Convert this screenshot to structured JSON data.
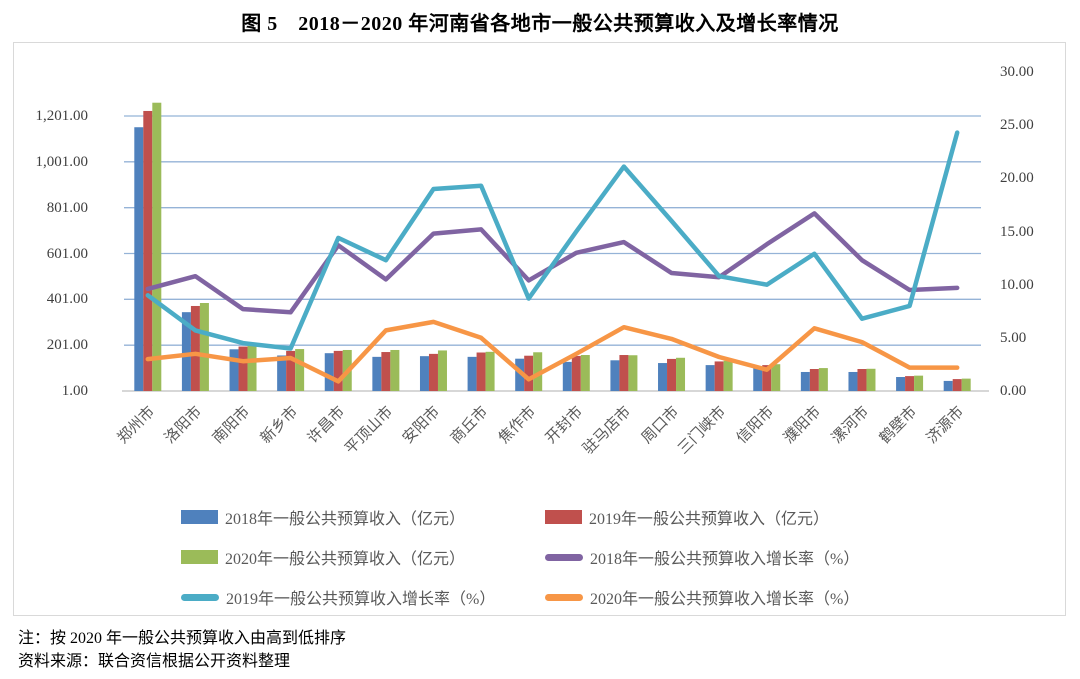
{
  "title": "图 5　2018－2020 年河南省各地市一般公共预算收入及增长率情况",
  "notes": [
    "注：按 2020 年一般公共预算收入由高到低排序",
    "资料来源：联合资信根据公开资料整理"
  ],
  "chart_data": {
    "type": "combo-bar-line",
    "title": "图 5　2018－2020 年河南省各地市一般公共预算收入及增长率情况",
    "legend_position": "bottom",
    "grid": true,
    "categories": [
      "郑州市",
      "洛阳市",
      "南阳市",
      "新乡市",
      "许昌市",
      "平顶山市",
      "安阳市",
      "商丘市",
      "焦作市",
      "开封市",
      "驻马店市",
      "周口市",
      "三门峡市",
      "信阳市",
      "濮阳市",
      "漯河市",
      "鹤壁市",
      "济源市"
    ],
    "bar_series": [
      {
        "name": "2018年一般公共预算收入（亿元）",
        "color": "#4F81BD",
        "axis": "left",
        "values": [
          1152,
          345,
          183,
          156,
          166,
          150,
          153,
          150,
          142,
          128,
          135,
          123,
          114,
          101,
          84,
          84,
          62,
          45
        ]
      },
      {
        "name": "2019年一般公共预算收入（亿元）",
        "color": "#C0504D",
        "axis": "left",
        "values": [
          1223,
          372,
          195,
          176,
          176,
          171,
          163,
          169,
          155,
          154,
          158,
          141,
          130,
          114,
          97,
          97,
          66,
          53
        ]
      },
      {
        "name": "2020年一般公共预算收入（亿元）",
        "color": "#9BBB59",
        "axis": "left",
        "values": [
          1259,
          385,
          201,
          184,
          180,
          180,
          178,
          172,
          170,
          158,
          157,
          146,
          133,
          118,
          101,
          98,
          68,
          55
        ]
      }
    ],
    "line_series": [
      {
        "name": "2018年一般公共预算收入增长率（%）",
        "color": "#8064A2",
        "axis": "right",
        "values": [
          9.6,
          10.8,
          7.7,
          7.4,
          13.7,
          10.5,
          14.8,
          15.2,
          10.4,
          13.0,
          14.0,
          11.1,
          10.7,
          13.8,
          16.7,
          12.3,
          9.5,
          9.7
        ]
      },
      {
        "name": "2019年一般公共预算收入增长率（%）",
        "color": "#4BACC6",
        "axis": "right",
        "values": [
          9.0,
          5.7,
          4.5,
          4.0,
          14.4,
          12.3,
          19.0,
          19.3,
          8.7,
          15.0,
          21.1,
          16.0,
          10.8,
          10.0,
          12.9,
          6.8,
          8.0,
          24.3
        ]
      },
      {
        "name": "2020年一般公共预算收入增长率（%）",
        "color": "#F79646",
        "axis": "right",
        "values": [
          3.0,
          3.5,
          2.8,
          3.1,
          0.9,
          5.7,
          6.5,
          5.0,
          1.1,
          3.5,
          6.0,
          4.9,
          3.2,
          2.0,
          5.9,
          4.6,
          2.2,
          2.2
        ]
      }
    ],
    "left_axis": {
      "min": 1,
      "max": 1201,
      "step": 200,
      "tick_labels": [
        "1.00",
        "201.00",
        "401.00",
        "601.00",
        "801.00",
        "1,001.00",
        "1,201.00"
      ]
    },
    "right_axis": {
      "min": 0,
      "max": 30,
      "step": 5,
      "tick_labels": [
        "0.00",
        "5.00",
        "10.00",
        "15.00",
        "20.00",
        "25.00",
        "30.00"
      ]
    },
    "colors": {
      "gridline": "#95B3D7",
      "axis_line": "#BFBFBF",
      "tick_text": "#3f3f3f",
      "label_text": "#595959"
    }
  }
}
